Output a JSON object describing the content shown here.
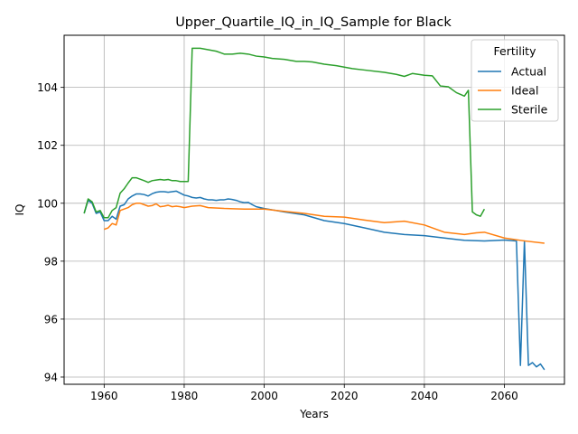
{
  "chart_data": {
    "type": "line",
    "title": "Upper_Quartile_IQ_in_IQ_Sample for Black",
    "xlabel": "Years",
    "ylabel": "IQ",
    "xlim": [
      1950,
      2075
    ],
    "ylim": [
      93.75,
      105.8
    ],
    "xticks": [
      1960,
      1980,
      2000,
      2020,
      2040,
      2060
    ],
    "yticks": [
      94,
      96,
      98,
      100,
      102,
      104
    ],
    "grid": true,
    "legend": {
      "title": "Fertility",
      "placement": "top-right"
    },
    "series": [
      {
        "name": "Actual",
        "color": "#1f77b4",
        "points": [
          [
            1955,
            99.65
          ],
          [
            1956,
            100.1
          ],
          [
            1957,
            100.0
          ],
          [
            1958,
            99.65
          ],
          [
            1959,
            99.7
          ],
          [
            1960,
            99.4
          ],
          [
            1961,
            99.4
          ],
          [
            1962,
            99.55
          ],
          [
            1963,
            99.45
          ],
          [
            1964,
            99.9
          ],
          [
            1965,
            99.95
          ],
          [
            1966,
            100.15
          ],
          [
            1967,
            100.25
          ],
          [
            1968,
            100.32
          ],
          [
            1969,
            100.32
          ],
          [
            1970,
            100.3
          ],
          [
            1971,
            100.25
          ],
          [
            1972,
            100.33
          ],
          [
            1973,
            100.38
          ],
          [
            1974,
            100.4
          ],
          [
            1975,
            100.4
          ],
          [
            1976,
            100.38
          ],
          [
            1977,
            100.4
          ],
          [
            1978,
            100.42
          ],
          [
            1979,
            100.35
          ],
          [
            1980,
            100.28
          ],
          [
            1981,
            100.25
          ],
          [
            1982,
            100.2
          ],
          [
            1983,
            100.18
          ],
          [
            1984,
            100.2
          ],
          [
            1985,
            100.15
          ],
          [
            1986,
            100.12
          ],
          [
            1987,
            100.12
          ],
          [
            1988,
            100.1
          ],
          [
            1989,
            100.12
          ],
          [
            1990,
            100.12
          ],
          [
            1991,
            100.15
          ],
          [
            1992,
            100.13
          ],
          [
            1993,
            100.1
          ],
          [
            1994,
            100.05
          ],
          [
            1995,
            100.02
          ],
          [
            1996,
            100.03
          ],
          [
            1997,
            99.95
          ],
          [
            1998,
            99.88
          ],
          [
            1999,
            99.85
          ],
          [
            2000,
            99.82
          ],
          [
            2005,
            99.7
          ],
          [
            2010,
            99.6
          ],
          [
            2015,
            99.4
          ],
          [
            2020,
            99.3
          ],
          [
            2025,
            99.15
          ],
          [
            2030,
            99.0
          ],
          [
            2035,
            98.92
          ],
          [
            2040,
            98.88
          ],
          [
            2045,
            98.8
          ],
          [
            2050,
            98.72
          ],
          [
            2055,
            98.7
          ],
          [
            2060,
            98.73
          ],
          [
            2063,
            98.7
          ],
          [
            2064,
            94.4
          ],
          [
            2065,
            98.7
          ],
          [
            2066,
            94.4
          ],
          [
            2067,
            94.5
          ],
          [
            2068,
            94.35
          ],
          [
            2069,
            94.45
          ],
          [
            2070,
            94.25
          ]
        ]
      },
      {
        "name": "Ideal",
        "color": "#ff7f0e",
        "points": [
          [
            1960,
            99.1
          ],
          [
            1961,
            99.15
          ],
          [
            1962,
            99.3
          ],
          [
            1963,
            99.25
          ],
          [
            1964,
            99.75
          ],
          [
            1965,
            99.8
          ],
          [
            1966,
            99.85
          ],
          [
            1967,
            99.95
          ],
          [
            1968,
            100.0
          ],
          [
            1969,
            100.0
          ],
          [
            1970,
            99.95
          ],
          [
            1971,
            99.9
          ],
          [
            1972,
            99.92
          ],
          [
            1973,
            99.98
          ],
          [
            1974,
            99.88
          ],
          [
            1975,
            99.9
          ],
          [
            1976,
            99.93
          ],
          [
            1977,
            99.88
          ],
          [
            1978,
            99.9
          ],
          [
            1979,
            99.88
          ],
          [
            1980,
            99.85
          ],
          [
            1982,
            99.9
          ],
          [
            1984,
            99.92
          ],
          [
            1986,
            99.85
          ],
          [
            1990,
            99.82
          ],
          [
            1995,
            99.8
          ],
          [
            2000,
            99.8
          ],
          [
            2005,
            99.72
          ],
          [
            2010,
            99.65
          ],
          [
            2015,
            99.55
          ],
          [
            2020,
            99.52
          ],
          [
            2025,
            99.42
          ],
          [
            2030,
            99.33
          ],
          [
            2035,
            99.38
          ],
          [
            2040,
            99.25
          ],
          [
            2045,
            99.0
          ],
          [
            2050,
            98.92
          ],
          [
            2053,
            98.98
          ],
          [
            2055,
            99.0
          ],
          [
            2060,
            98.8
          ],
          [
            2065,
            98.7
          ],
          [
            2070,
            98.62
          ]
        ]
      },
      {
        "name": "Sterile",
        "color": "#2ca02c",
        "points": [
          [
            1955,
            99.65
          ],
          [
            1956,
            100.15
          ],
          [
            1957,
            100.05
          ],
          [
            1958,
            99.7
          ],
          [
            1959,
            99.75
          ],
          [
            1960,
            99.5
          ],
          [
            1961,
            99.5
          ],
          [
            1962,
            99.75
          ],
          [
            1963,
            99.85
          ],
          [
            1964,
            100.35
          ],
          [
            1965,
            100.5
          ],
          [
            1966,
            100.7
          ],
          [
            1967,
            100.88
          ],
          [
            1968,
            100.88
          ],
          [
            1969,
            100.83
          ],
          [
            1970,
            100.78
          ],
          [
            1971,
            100.72
          ],
          [
            1972,
            100.78
          ],
          [
            1973,
            100.8
          ],
          [
            1974,
            100.82
          ],
          [
            1975,
            100.8
          ],
          [
            1976,
            100.82
          ],
          [
            1977,
            100.78
          ],
          [
            1978,
            100.78
          ],
          [
            1979,
            100.75
          ],
          [
            1980,
            100.75
          ],
          [
            1981,
            100.75
          ],
          [
            1982,
            105.35
          ],
          [
            1984,
            105.35
          ],
          [
            1986,
            105.3
          ],
          [
            1988,
            105.25
          ],
          [
            1989,
            105.2
          ],
          [
            1990,
            105.15
          ],
          [
            1992,
            105.15
          ],
          [
            1994,
            105.18
          ],
          [
            1996,
            105.15
          ],
          [
            1998,
            105.08
          ],
          [
            2000,
            105.05
          ],
          [
            2002,
            105.0
          ],
          [
            2005,
            104.97
          ],
          [
            2008,
            104.9
          ],
          [
            2010,
            104.9
          ],
          [
            2012,
            104.88
          ],
          [
            2015,
            104.8
          ],
          [
            2018,
            104.75
          ],
          [
            2020,
            104.7
          ],
          [
            2022,
            104.65
          ],
          [
            2025,
            104.6
          ],
          [
            2030,
            104.52
          ],
          [
            2033,
            104.45
          ],
          [
            2035,
            104.38
          ],
          [
            2037,
            104.48
          ],
          [
            2040,
            104.42
          ],
          [
            2042,
            104.4
          ],
          [
            2044,
            104.05
          ],
          [
            2046,
            104.02
          ],
          [
            2048,
            103.82
          ],
          [
            2050,
            103.7
          ],
          [
            2051,
            103.9
          ],
          [
            2052,
            99.7
          ],
          [
            2053,
            99.6
          ],
          [
            2054,
            99.55
          ],
          [
            2055,
            99.8
          ]
        ]
      }
    ]
  }
}
